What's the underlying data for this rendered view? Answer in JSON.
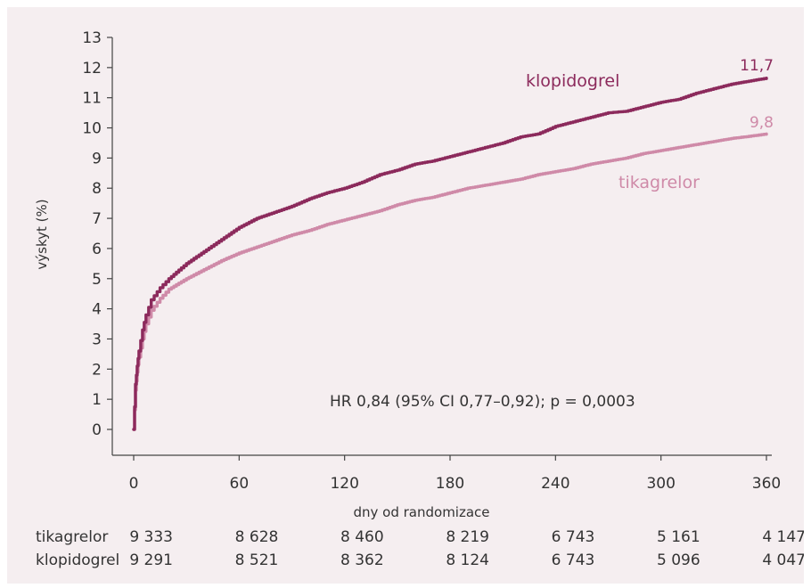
{
  "chart_data": {
    "type": "line",
    "xlabel": "dny od randomizace",
    "ylabel": "výskyt (%)",
    "xlim": [
      0,
      360
    ],
    "ylim": [
      0,
      13
    ],
    "x_ticks": [
      0,
      60,
      120,
      180,
      240,
      300,
      360
    ],
    "y_ticks": [
      0,
      1,
      2,
      3,
      4,
      5,
      6,
      7,
      8,
      9,
      10,
      11,
      12,
      13
    ],
    "grid": false,
    "annotation": "HR 0,84 (95% CI 0,77–0,92); p = 0,0003",
    "series": [
      {
        "name": "klopidogrel",
        "color": "#8c2a5c",
        "end_label": "11,7",
        "x": [
          0,
          1,
          2,
          3,
          5,
          7,
          10,
          15,
          20,
          30,
          40,
          50,
          60,
          70,
          80,
          90,
          100,
          110,
          120,
          130,
          140,
          150,
          160,
          170,
          180,
          190,
          200,
          210,
          220,
          230,
          240,
          250,
          260,
          270,
          280,
          290,
          300,
          310,
          320,
          330,
          340,
          350,
          360
        ],
        "y": [
          0,
          1.5,
          2.1,
          2.6,
          3.3,
          3.8,
          4.3,
          4.7,
          5.0,
          5.5,
          5.9,
          6.3,
          6.7,
          7.0,
          7.2,
          7.4,
          7.65,
          7.85,
          8.0,
          8.2,
          8.45,
          8.6,
          8.8,
          8.9,
          9.05,
          9.2,
          9.35,
          9.5,
          9.7,
          9.8,
          10.05,
          10.2,
          10.35,
          10.5,
          10.55,
          10.7,
          10.85,
          10.95,
          11.15,
          11.3,
          11.45,
          11.55,
          11.65
        ]
      },
      {
        "name": "tikagrelor",
        "color": "#cf8aa8",
        "end_label": "9,8",
        "x": [
          0,
          1,
          2,
          3,
          5,
          7,
          10,
          15,
          20,
          30,
          40,
          50,
          60,
          70,
          80,
          90,
          100,
          110,
          120,
          130,
          140,
          150,
          160,
          170,
          180,
          190,
          200,
          210,
          220,
          230,
          240,
          250,
          260,
          270,
          280,
          290,
          300,
          310,
          320,
          330,
          340,
          350,
          360
        ],
        "y": [
          0,
          1.3,
          1.9,
          2.4,
          3.0,
          3.5,
          3.95,
          4.35,
          4.65,
          5.0,
          5.3,
          5.6,
          5.85,
          6.05,
          6.25,
          6.45,
          6.6,
          6.8,
          6.95,
          7.1,
          7.25,
          7.45,
          7.6,
          7.7,
          7.85,
          8.0,
          8.1,
          8.2,
          8.3,
          8.45,
          8.55,
          8.65,
          8.8,
          8.9,
          9.0,
          9.15,
          9.25,
          9.35,
          9.45,
          9.55,
          9.65,
          9.72,
          9.8
        ]
      }
    ],
    "at_risk": {
      "columns": [
        "0",
        "60",
        "120",
        "180",
        "240",
        "300",
        "360"
      ],
      "rows": [
        {
          "label": "tikagrelor",
          "values": [
            "9 333",
            "8 628",
            "8 460",
            "8 219",
            "6 743",
            "5 161",
            "4 147"
          ]
        },
        {
          "label": "klopidogrel",
          "values": [
            "9 291",
            "8 521",
            "8 362",
            "8 124",
            "6 743",
            "5 096",
            "4 047"
          ]
        }
      ]
    }
  }
}
